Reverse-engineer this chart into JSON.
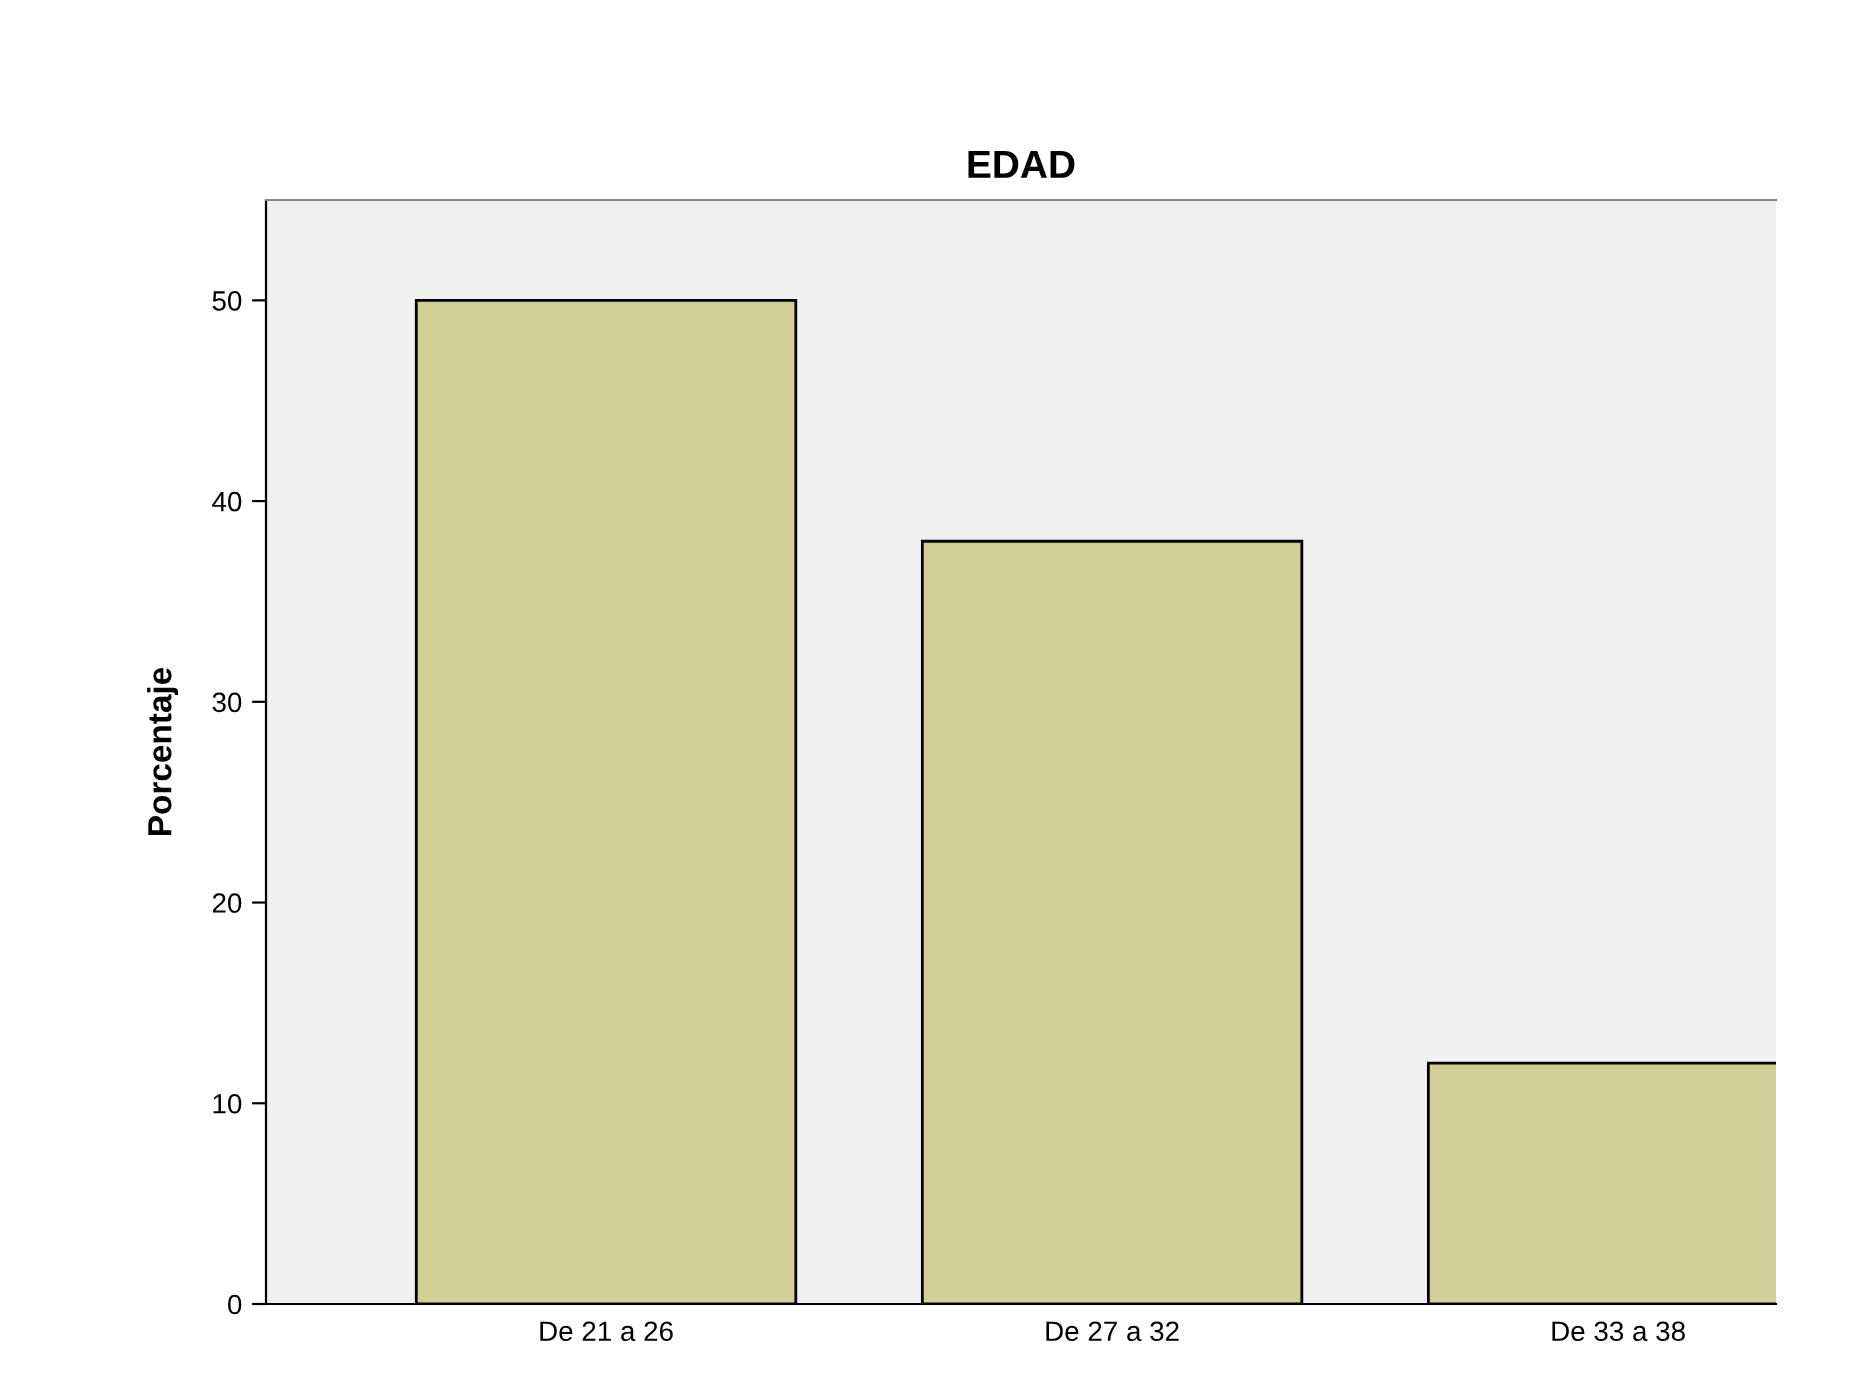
{
  "chart_data": {
    "type": "bar",
    "title": "EDAD",
    "ylabel": "Porcentaje",
    "categories": [
      "De 21 a 26",
      "De 27 a 32",
      "De 33 a 38"
    ],
    "values": [
      50,
      38,
      12
    ],
    "color": "#d3ce97",
    "ylim": [
      0,
      55
    ],
    "yticks": [
      0,
      10,
      20,
      30,
      40,
      50
    ],
    "grid": false,
    "legend": false
  }
}
